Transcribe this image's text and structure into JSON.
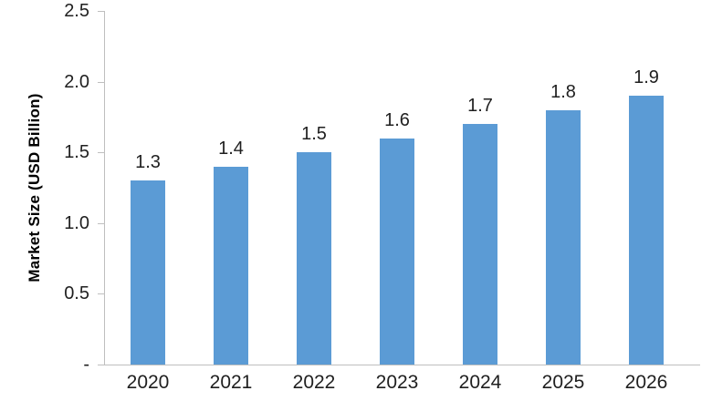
{
  "chart_data": {
    "type": "bar",
    "title": "",
    "xlabel": "",
    "ylabel": "Market Size (USD Billion)",
    "categories": [
      "2020",
      "2021",
      "2022",
      "2023",
      "2024",
      "2025",
      "2026"
    ],
    "values": [
      1.3,
      1.4,
      1.5,
      1.6,
      1.7,
      1.8,
      1.9
    ],
    "data_labels": [
      "1.3",
      "1.4",
      "1.5",
      "1.6",
      "1.7",
      "1.8",
      "1.9"
    ],
    "ylim": [
      0,
      2.5
    ],
    "yticks": [
      {
        "value": 0,
        "label": "-"
      },
      {
        "value": 0.5,
        "label": "0.5"
      },
      {
        "value": 1.0,
        "label": "1.0"
      },
      {
        "value": 1.5,
        "label": "1.5"
      },
      {
        "value": 2.0,
        "label": "2.0"
      },
      {
        "value": 2.5,
        "label": "2.5"
      }
    ],
    "grid": false,
    "legend": false,
    "colors": {
      "bar": "#5b9bd5",
      "axis": "#bfbfbf",
      "text": "#1f1f1f"
    }
  }
}
